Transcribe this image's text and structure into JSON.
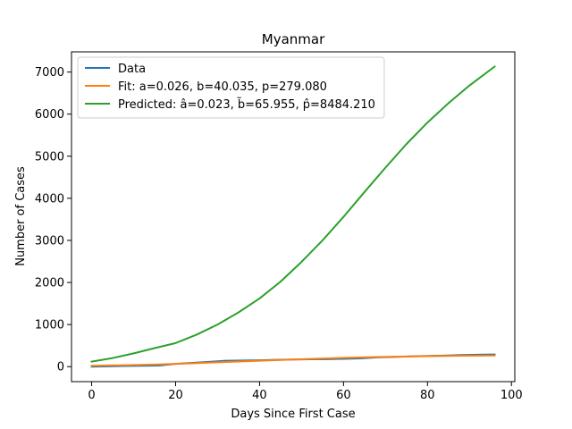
{
  "chart_data": {
    "type": "line",
    "title": "Myanmar",
    "xlabel": "Days Since First Case",
    "ylabel": "Number of Cases",
    "xlim": [
      -4.8,
      100.8
    ],
    "ylim": [
      -356,
      7480
    ],
    "xticks": [
      0,
      20,
      40,
      60,
      80,
      100
    ],
    "yticks": [
      0,
      1000,
      2000,
      3000,
      4000,
      5000,
      6000,
      7000
    ],
    "grid": false,
    "legend_position": "top-left",
    "series": [
      {
        "name": "Data",
        "color": "#1f77b4",
        "x": [
          0,
          4,
          8,
          12,
          16,
          20,
          24,
          28,
          32,
          36,
          40,
          44,
          48,
          52,
          56,
          60,
          64,
          68,
          72,
          76,
          80,
          84,
          88,
          92,
          96
        ],
        "y": [
          1,
          8,
          15,
          22,
          27,
          65,
          90,
          115,
          140,
          145,
          150,
          162,
          170,
          175,
          178,
          185,
          195,
          220,
          230,
          245,
          255,
          262,
          275,
          285,
          290
        ]
      },
      {
        "name": "Fit: a=0.026, b=40.035, p=279.080",
        "color": "#ff7f0e",
        "x": [
          0,
          8,
          16,
          24,
          32,
          40,
          48,
          56,
          64,
          72,
          80,
          88,
          96
        ],
        "y": [
          22,
          35,
          54,
          80,
          110,
          140,
          170,
          197,
          220,
          237,
          250,
          260,
          266
        ]
      },
      {
        "name": "Predicted: â=0.023, b̃=65.955, p̂=8484.210",
        "color": "#2ca02c",
        "x": [
          0,
          5,
          10,
          15,
          20,
          25,
          30,
          35,
          40,
          45,
          50,
          55,
          60,
          65,
          70,
          75,
          80,
          85,
          90,
          96
        ],
        "y": [
          120,
          205,
          315,
          440,
          560,
          760,
          1000,
          1290,
          1620,
          2020,
          2490,
          3000,
          3560,
          4150,
          4730,
          5290,
          5800,
          6260,
          6680,
          7130
        ]
      }
    ]
  }
}
